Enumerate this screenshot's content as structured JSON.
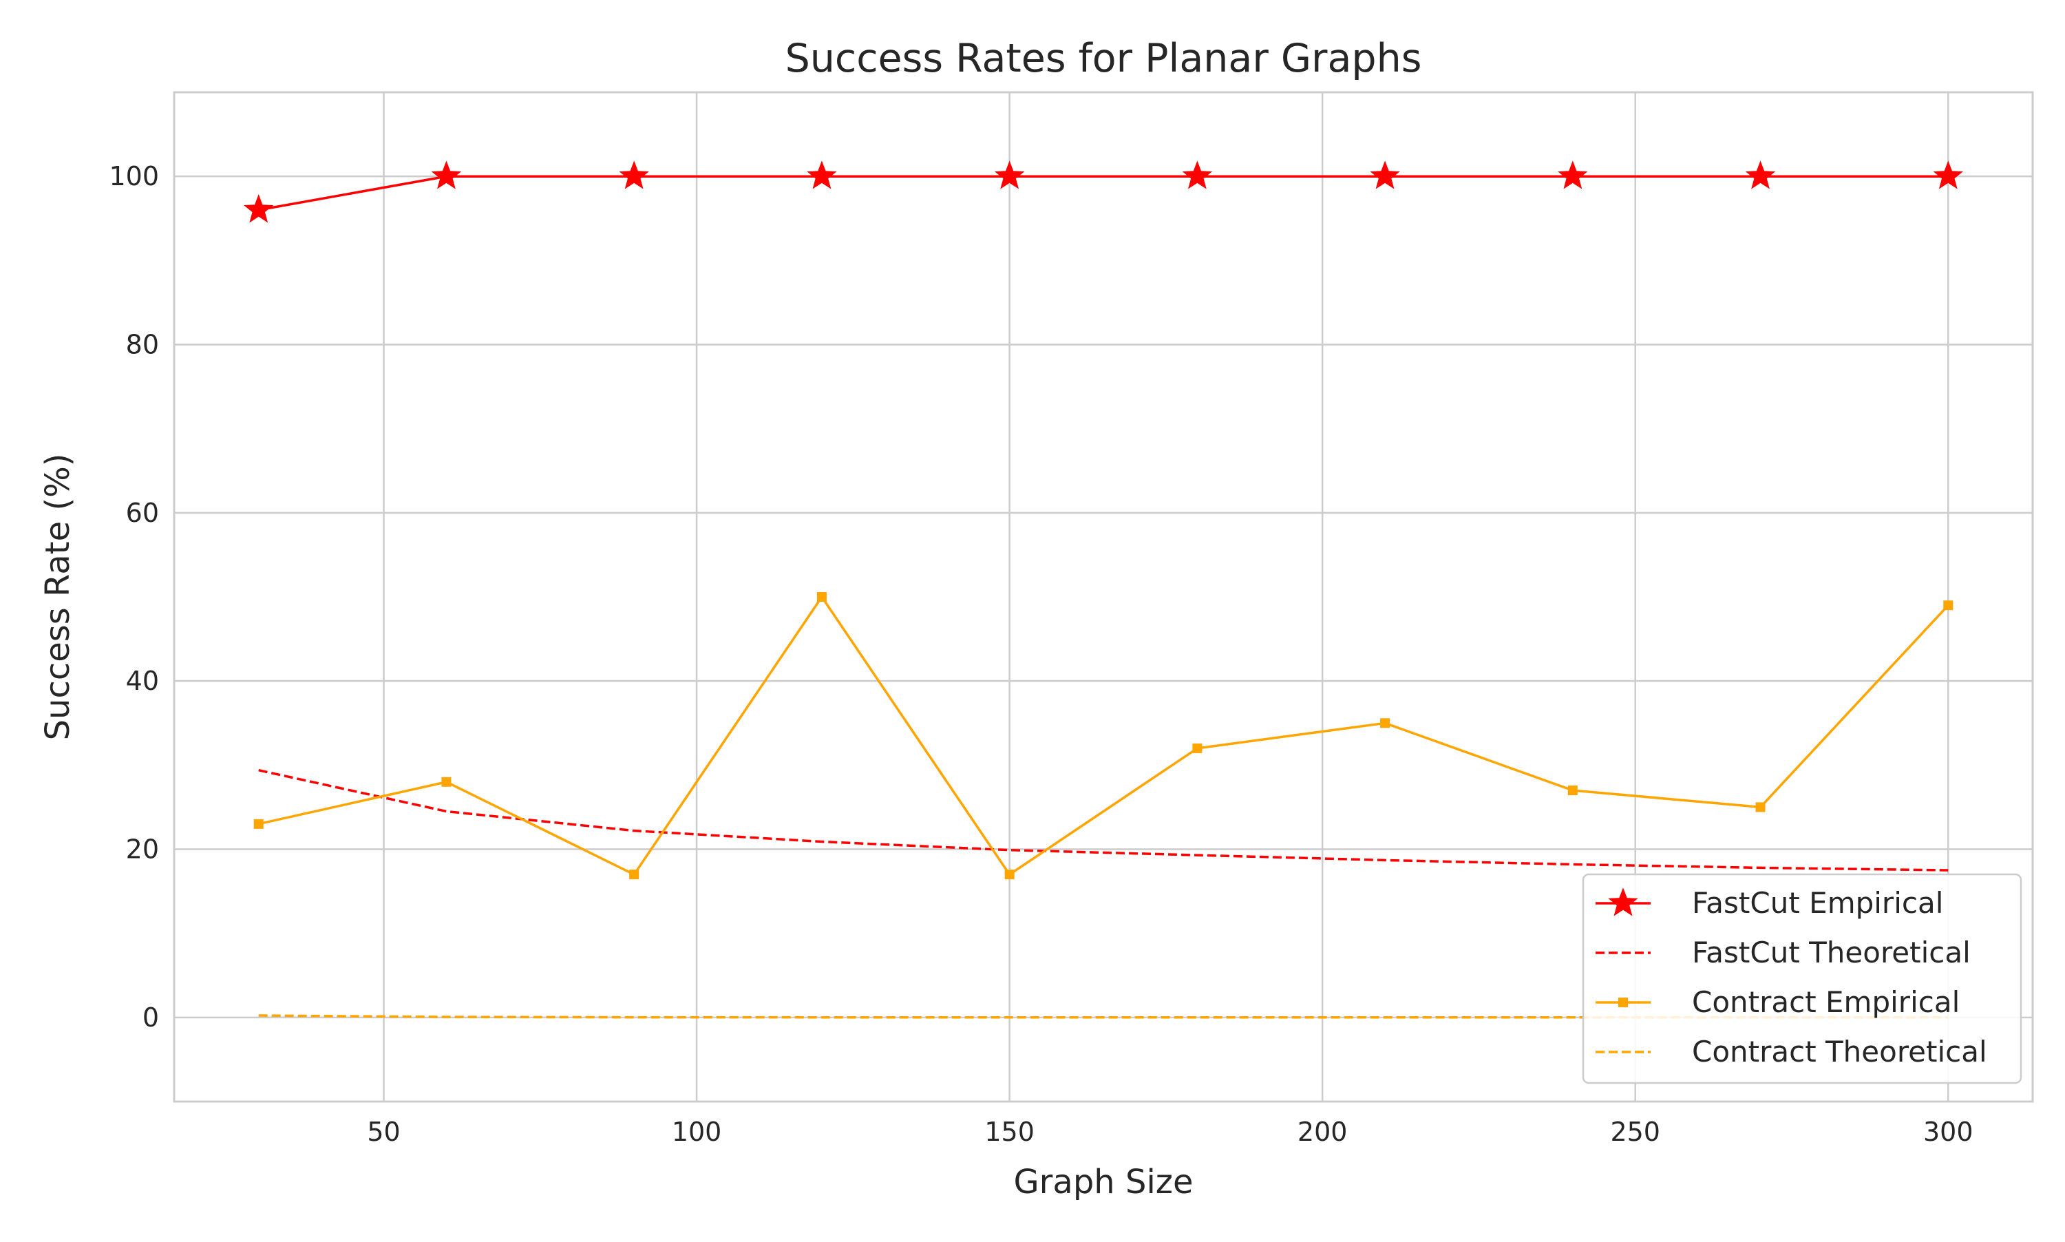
{
  "chart_data": {
    "type": "line",
    "title": "Success Rates for Planar Graphs",
    "xlabel": "Graph Size",
    "ylabel": "Success Rate (%)",
    "xlim": [
      16.5,
      313.5
    ],
    "ylim": [
      -10,
      110
    ],
    "xticks": [
      50,
      100,
      150,
      200,
      250,
      300
    ],
    "yticks": [
      0,
      20,
      40,
      60,
      80,
      100
    ],
    "x": [
      30,
      60,
      90,
      120,
      150,
      180,
      210,
      240,
      270,
      300
    ],
    "grid": true,
    "legend_position": "lower-right",
    "series": [
      {
        "name": "FastCut Empirical",
        "color": "#ff0000",
        "line_style": "solid",
        "marker": "star",
        "values": [
          96,
          100,
          100,
          100,
          100,
          100,
          100,
          100,
          100,
          100
        ]
      },
      {
        "name": "FastCut Theoretical",
        "color": "#ff0000",
        "line_style": "dashed",
        "marker": "none",
        "values": [
          29.4,
          24.5,
          22.2,
          20.9,
          19.9,
          19.3,
          18.7,
          18.2,
          17.8,
          17.5
        ]
      },
      {
        "name": "Contract Empirical",
        "color": "#ffa500",
        "line_style": "solid",
        "marker": "square",
        "values": [
          23,
          28,
          17,
          50,
          17,
          32,
          35,
          27,
          25,
          49
        ]
      },
      {
        "name": "Contract Theoretical",
        "color": "#ffa500",
        "line_style": "dashed",
        "marker": "none",
        "values": [
          0.23,
          0.06,
          0.02,
          0.01,
          0.01,
          0.01,
          0.0,
          0.0,
          0.0,
          0.0
        ]
      }
    ]
  }
}
